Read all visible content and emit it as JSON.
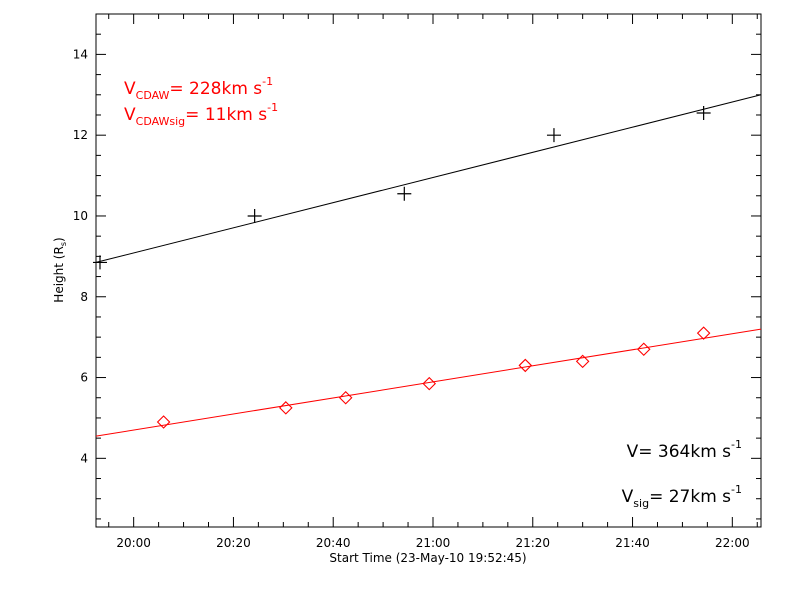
{
  "chart_data": {
    "type": "scatter",
    "xlabel": "Start Time (23-May-10 19:52:45)",
    "ylabel": "Height (R",
    "ylabel_sub": "s",
    "ylabel_close": ")",
    "x_range_min": [
      -0.3,
      133
    ],
    "ylim": [
      2.3,
      15.0
    ],
    "x_ticks": [
      {
        "label": "20:00",
        "value": 7.25
      },
      {
        "label": "20:20",
        "value": 27.25
      },
      {
        "label": "20:40",
        "value": 47.25
      },
      {
        "label": "21:00",
        "value": 67.25
      },
      {
        "label": "21:20",
        "value": 87.25
      },
      {
        "label": "21:40",
        "value": 107.25
      },
      {
        "label": "22:00",
        "value": 127.25
      }
    ],
    "y_ticks": [
      4,
      6,
      8,
      10,
      12,
      14
    ],
    "series": [
      {
        "marker": "plus",
        "color": "#000000",
        "x": [
          0.5,
          31.5,
          61.5,
          91.5,
          121.5
        ],
        "y": [
          8.85,
          10.0,
          10.55,
          12.0,
          12.55
        ],
        "fit": {
          "x": [
            -0.3,
            133
          ],
          "y": [
            8.85,
            13.0
          ]
        }
      },
      {
        "marker": "diamond",
        "color": "#ff0000",
        "x": [
          13.25,
          37.75,
          49.75,
          66.5,
          85.75,
          97.25,
          109.5,
          121.5
        ],
        "y": [
          4.9,
          5.25,
          5.5,
          5.85,
          6.3,
          6.4,
          6.7,
          7.1
        ],
        "fit": {
          "x": [
            -0.3,
            133
          ],
          "y": [
            4.55,
            7.2
          ]
        }
      }
    ],
    "annotations": [
      {
        "name": "vcdaw",
        "base": "V",
        "sub": "CDAW",
        "main": "= 228km s",
        "sup": "-1",
        "color": "#ff0000"
      },
      {
        "name": "vcdawsig",
        "base": "V",
        "sub": "CDAWsig",
        "main": "=  11km s",
        "sup": "-1",
        "color": "#ff0000"
      },
      {
        "name": "v",
        "base": "V",
        "sub": "",
        "main": "= 364km s",
        "sup": "-1",
        "color": "#000000"
      },
      {
        "name": "vsig",
        "base": "V",
        "sub": "sig",
        "main": "=  27km s",
        "sup": "-1",
        "color": "#000000"
      }
    ]
  }
}
